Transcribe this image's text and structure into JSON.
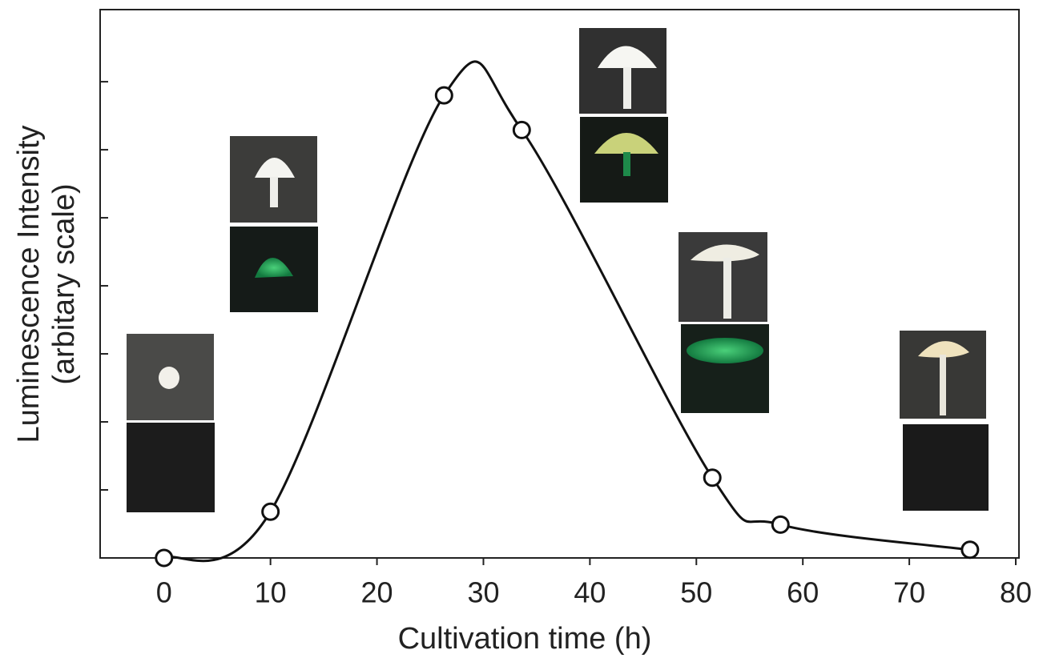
{
  "chart_data": {
    "type": "line",
    "x_label": "Cultivation time (h)",
    "y_label": [
      "Luminescence Intensity",
      "(arbitary scale)"
    ],
    "x": [
      0,
      10,
      26.3,
      33.6,
      51.5,
      57.9,
      75.7
    ],
    "series": [
      {
        "color": "#111111",
        "values": [
          0,
          0.68,
          6.8,
          6.29,
          1.18,
          0.49,
          0.12
        ]
      }
    ],
    "xlim": [
      -6,
      80.3
    ],
    "ylim": [
      0,
      8.06
    ],
    "xticks": [
      0,
      10,
      20,
      30,
      40,
      50,
      60,
      70,
      80
    ],
    "yticks": [
      1,
      2,
      3,
      4,
      5,
      6,
      7
    ],
    "smooth": true,
    "markers": true
  }
}
